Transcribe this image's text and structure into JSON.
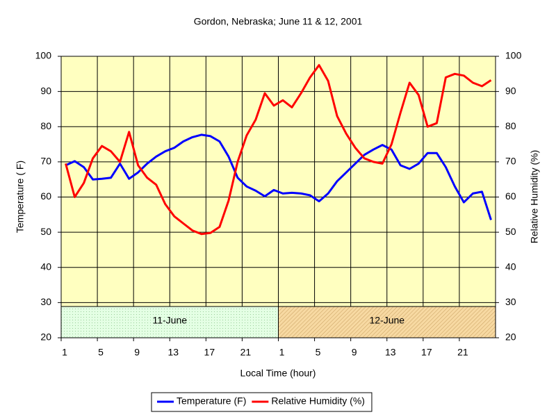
{
  "chart_data": {
    "type": "line",
    "title": "Gordon, Nebraska; June 11 & 12, 2001",
    "x_label": "Local Time (hour)",
    "y_label": "Temperature ( F)",
    "y2_label": "Relative Humidity (%)",
    "x": [
      0.5,
      1.5,
      2.5,
      3.5,
      4.5,
      5.5,
      6.5,
      7.5,
      8.5,
      9.5,
      10.5,
      11.5,
      12.5,
      13.5,
      14.5,
      15.5,
      16.5,
      17.5,
      18.5,
      19.5,
      20.5,
      21.5,
      22.5,
      23.5,
      24.5,
      25.5,
      26.5,
      27.5,
      28.5,
      29.5,
      30.5,
      31.5,
      32.5,
      33.5,
      34.5,
      35.5,
      36.5,
      37.5,
      38.5,
      39.5,
      40.5,
      41.5,
      42.5,
      43.5,
      44.5,
      45.5,
      46.5,
      47.5
    ],
    "series": [
      {
        "name": "Temperature (F)",
        "color": "#0000ff",
        "values": [
          69,
          70.2,
          68.5,
          65,
          65.2,
          65.5,
          69.5,
          65.2,
          67,
          69.5,
          71.5,
          73,
          74,
          75.8,
          77,
          77.7,
          77.3,
          75.8,
          71.5,
          65.5,
          63,
          61.8,
          60.2,
          62,
          61,
          61.2,
          61,
          60.5,
          58.8,
          61,
          64.5,
          67,
          69.5,
          72,
          73.5,
          74.8,
          73.5,
          69,
          68,
          69.5,
          72.5,
          72.5,
          68.5,
          63,
          58.5,
          61,
          61.5,
          53.5
        ]
      },
      {
        "name": "Relative Humidity (%)",
        "color": "#ff0000",
        "axis": "y2",
        "values": [
          69.5,
          60,
          64,
          71,
          74.5,
          73,
          70,
          78.5,
          69,
          65.5,
          63.5,
          58,
          54.5,
          52.5,
          50.5,
          49.5,
          49.8,
          51.5,
          59,
          70,
          77.5,
          82,
          89.5,
          86,
          87.5,
          85.5,
          89.5,
          94,
          97.5,
          93,
          83,
          78,
          74,
          71,
          70,
          69.5,
          75,
          84,
          92.5,
          89,
          80,
          81,
          94,
          95,
          94.5,
          92.5,
          91.5,
          93.2
        ]
      }
    ],
    "xlim": [
      0,
      48
    ],
    "xticks": [
      {
        "value": 0,
        "label": "1"
      },
      {
        "value": 4,
        "label": "5"
      },
      {
        "value": 8,
        "label": "9"
      },
      {
        "value": 12,
        "label": "13"
      },
      {
        "value": 16,
        "label": "17"
      },
      {
        "value": 20,
        "label": "21"
      },
      {
        "value": 24,
        "label": "1"
      },
      {
        "value": 28,
        "label": "5"
      },
      {
        "value": 32,
        "label": "9"
      },
      {
        "value": 36,
        "label": "13"
      },
      {
        "value": 40,
        "label": "17"
      },
      {
        "value": 44,
        "label": "21"
      }
    ],
    "ylim": [
      20,
      100
    ],
    "yticks": [
      20,
      30,
      40,
      50,
      60,
      70,
      80,
      90,
      100
    ],
    "y2lim": [
      20,
      100
    ],
    "y2ticks": [
      20,
      30,
      40,
      50,
      60,
      70,
      80,
      90,
      100
    ],
    "grid": true,
    "plot_background": "#ffffc0",
    "day_bands": [
      {
        "label": "11-June",
        "start": 0,
        "end": 24,
        "color": "#e4ffe4"
      },
      {
        "label": "12-June",
        "start": 24,
        "end": 48,
        "color": "#f7d9a2"
      }
    ],
    "legend": "bottom"
  }
}
